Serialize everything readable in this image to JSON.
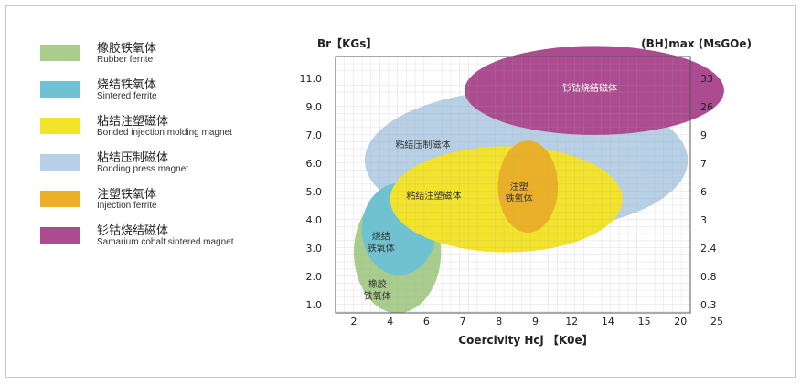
{
  "legend": {
    "items": [
      {
        "zh": "橡胶铁氧体",
        "en": "Rubber ferrite",
        "color": "#a8cd8c"
      },
      {
        "zh": "烧结铁氧体",
        "en": "Sintered ferrite",
        "color": "#6ec3d2"
      },
      {
        "zh": "粘结注塑磁体",
        "en": "Bonded injection molding magnet",
        "color": "#f3e32a"
      },
      {
        "zh": "粘结压制磁体",
        "en": "Bonding press magnet",
        "color": "#b8d0e6"
      },
      {
        "zh": "注塑铁氧体",
        "en": "Injection ferrite",
        "color": "#ecb024"
      },
      {
        "zh": "钐钴烧结磁体",
        "en": "Samarium cobalt sintered magnet",
        "color": "#ac4b90"
      }
    ]
  },
  "chart_data": {
    "type": "bubble-region",
    "ylabel": "Br【KGs】",
    "y2label": "(BH)max (MsGOe)",
    "xlabel": "Coercivity  Hcj 【K0e】",
    "x_ticks": [
      "2",
      "4",
      "6",
      "7",
      "8",
      "9",
      "12",
      "14",
      "15",
      "20",
      "25"
    ],
    "y_ticks": [
      "1.0",
      "2.0",
      "3.0",
      "4.0",
      "5.0",
      "6.0",
      "7.0",
      "9.0",
      "11.0"
    ],
    "y2_ticks": [
      "0.3",
      "0.8",
      "2.4",
      "3",
      "6",
      "7",
      "9",
      "26",
      "33"
    ],
    "grid": true,
    "regions": [
      {
        "name": "粘结压制磁体",
        "label": "粘结压制磁体",
        "color": "#b8d0e6",
        "x_index": [
          0.3,
          9.2
        ],
        "y_index": [
          2.6,
          7.6
        ],
        "label_at": [
          1.9,
          5.55
        ]
      },
      {
        "name": "橡胶铁氧体",
        "label": "橡胶铁氧体",
        "color": "#a8cd8c",
        "x_index": [
          0.0,
          2.4
        ],
        "y_index": [
          -0.3,
          4.0
        ],
        "label_at": [
          0.65,
          0.55
        ]
      },
      {
        "name": "烧结铁氧体",
        "label": "烧结铁氧体",
        "color": "#6ec3d2",
        "x_index": [
          0.22,
          2.27
        ],
        "y_index": [
          1.05,
          4.3
        ],
        "label_at": [
          0.75,
          2.25
        ]
      },
      {
        "name": "钐钴烧结磁体",
        "label": "钐钴烧结磁体",
        "color": "#ac4b90",
        "x_index": [
          3.05,
          10.2
        ],
        "y_index": [
          6.0,
          9.15
        ],
        "label_at": [
          6.5,
          7.55
        ]
      },
      {
        "name": "粘结注塑磁体",
        "label": "粘结注塑磁体",
        "color": "#f3e32a",
        "x_index": [
          1.0,
          7.4
        ],
        "y_index": [
          1.85,
          5.6
        ],
        "label_at": [
          2.2,
          3.75
        ]
      },
      {
        "name": "注塑铁氧体",
        "label": "注塑铁氧体",
        "color": "#ecb024",
        "x_index": [
          3.97,
          5.62
        ],
        "y_index": [
          2.55,
          5.8
        ],
        "label_at": [
          4.55,
          4.0
        ]
      }
    ]
  }
}
